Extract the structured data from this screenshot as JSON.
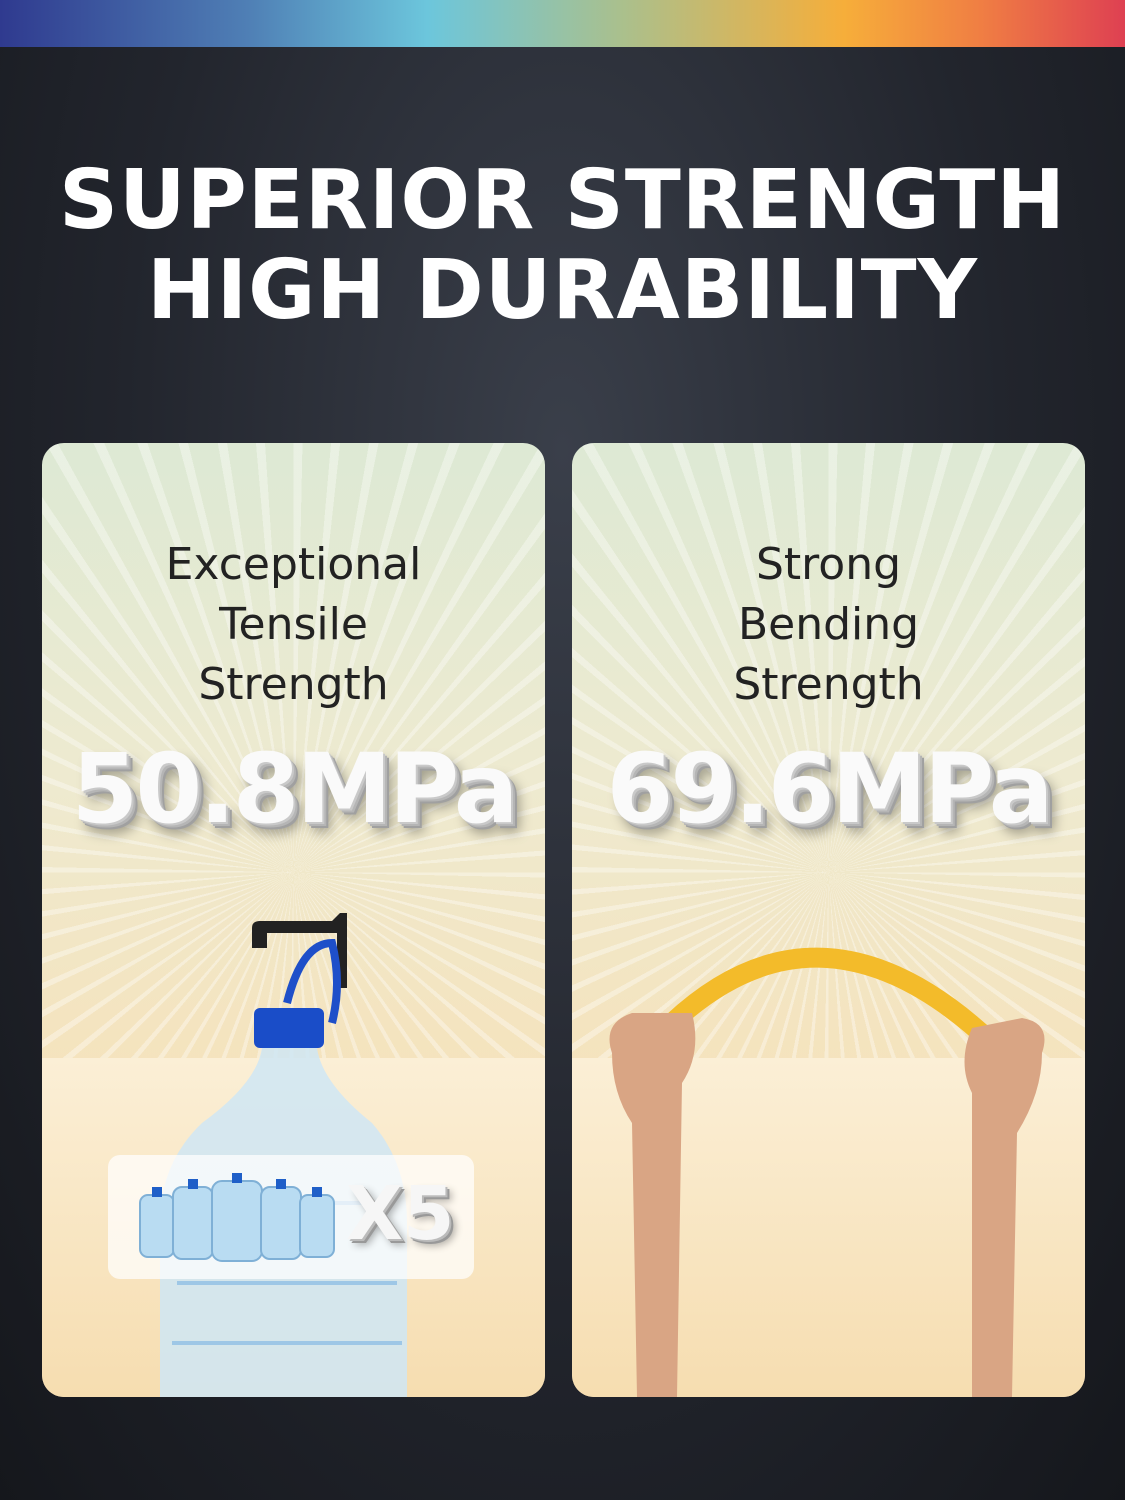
{
  "header": {
    "line1": "SUPERIOR STRENGTH",
    "line2": "HIGH DURABILITY",
    "rainbow_colors": [
      "#2f3a8f",
      "#6cc6dc",
      "#f6ae3a",
      "#de4052"
    ]
  },
  "cards": [
    {
      "label": [
        "Exceptional",
        "Tensile",
        "Strength"
      ],
      "value": "50.8MPa",
      "badge": "X5",
      "image": "water-bottle-on-hook"
    },
    {
      "label": [
        "Strong",
        "Bending",
        "Strength"
      ],
      "value": "69.6MPa",
      "image": "hands-bending-yellow-strip"
    }
  ]
}
